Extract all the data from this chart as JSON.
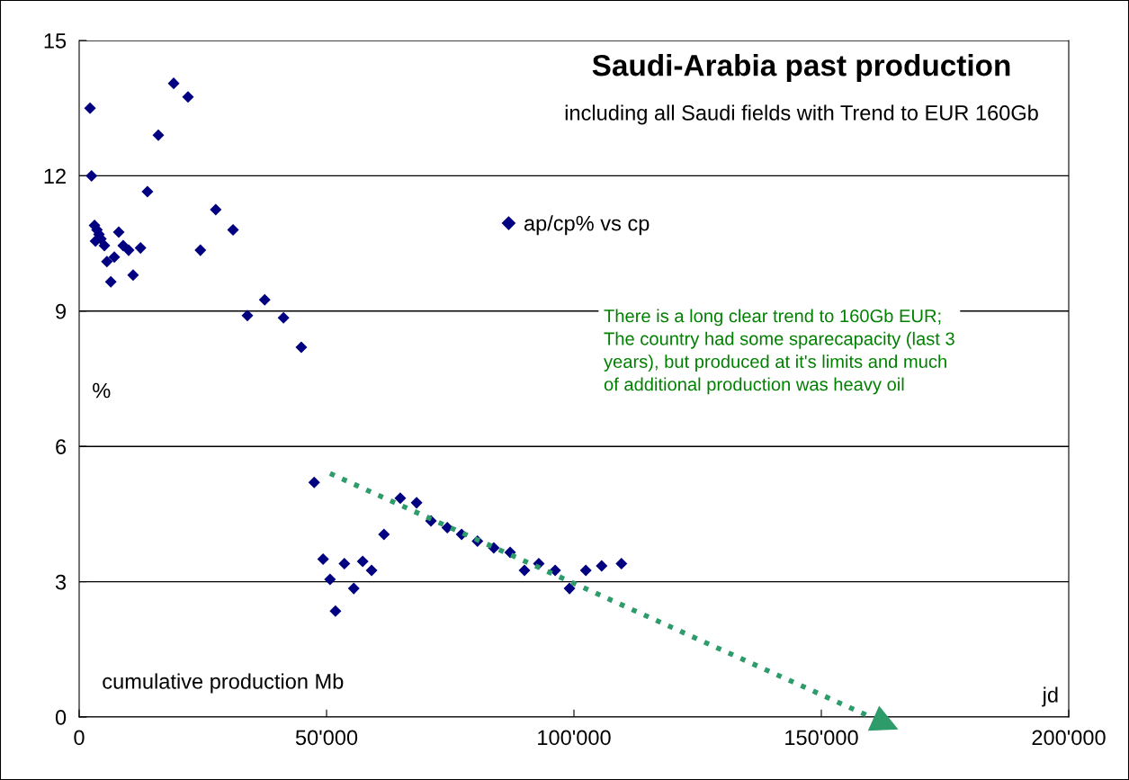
{
  "chart_data": {
    "type": "scatter",
    "title": "Saudi-Arabia past production",
    "subtitle": "including all Saudi fields with Trend to EUR 160Gb",
    "xlabel": "cumulative production Mb",
    "ylabel": "%",
    "annotations": [
      "There is a long clear trend to 160Gb EUR;\nThe country had some sparecapacity (last 3\nyears), but produced at it's limits and much\nof additional production was heavy oil",
      "jd"
    ],
    "xlim": [
      0,
      200000
    ],
    "ylim": [
      0,
      15
    ],
    "xticks": [
      0,
      {
        "value": 50000,
        "label": "50'000"
      },
      {
        "value": 100000,
        "label": "100'000"
      },
      {
        "value": 150000,
        "label": "150'000"
      },
      {
        "value": 200000,
        "label": "200'000"
      }
    ],
    "yticks": [
      0,
      3,
      6,
      9,
      12,
      15
    ],
    "grid": "y",
    "legend": "top",
    "series": [
      {
        "name": "ap/cp% vs cp",
        "color": "#000080",
        "marker": "diamond",
        "x": [
          2200,
          2500,
          3100,
          3600,
          4000,
          4400,
          3300,
          5100,
          5600,
          6400,
          7100,
          8000,
          8900,
          10000,
          10900,
          12400,
          13800,
          16000,
          19100,
          22000,
          24500,
          27600,
          31100,
          34000,
          37500,
          41300,
          44900,
          47500,
          49300,
          50700,
          51800,
          53600,
          55500,
          57300,
          59100,
          61600,
          64900,
          68200,
          71100,
          74400,
          77300,
          80500,
          83800,
          87100,
          90000,
          92900,
          96200,
          99100,
          102400,
          105600,
          109600
        ],
        "values": [
          13.5,
          12.0,
          10.9,
          10.8,
          10.7,
          10.6,
          10.55,
          10.45,
          10.1,
          9.65,
          10.2,
          10.75,
          10.45,
          10.35,
          9.8,
          10.4,
          11.65,
          12.9,
          14.05,
          13.75,
          10.35,
          11.25,
          10.8,
          8.9,
          9.25,
          8.85,
          8.2,
          5.2,
          3.5,
          3.05,
          2.35,
          3.4,
          2.85,
          3.45,
          3.25,
          4.05,
          4.85,
          4.75,
          4.35,
          4.2,
          4.05,
          3.9,
          3.75,
          3.65,
          3.25,
          3.4,
          3.25,
          2.85,
          3.25,
          3.35,
          3.4
        ]
      },
      {
        "type": "line",
        "color": "#2e9b6b",
        "line_style": "dotted",
        "marker": "none",
        "x": [
          50700,
          160000
        ],
        "values": [
          5.4,
          0
        ]
      }
    ]
  }
}
